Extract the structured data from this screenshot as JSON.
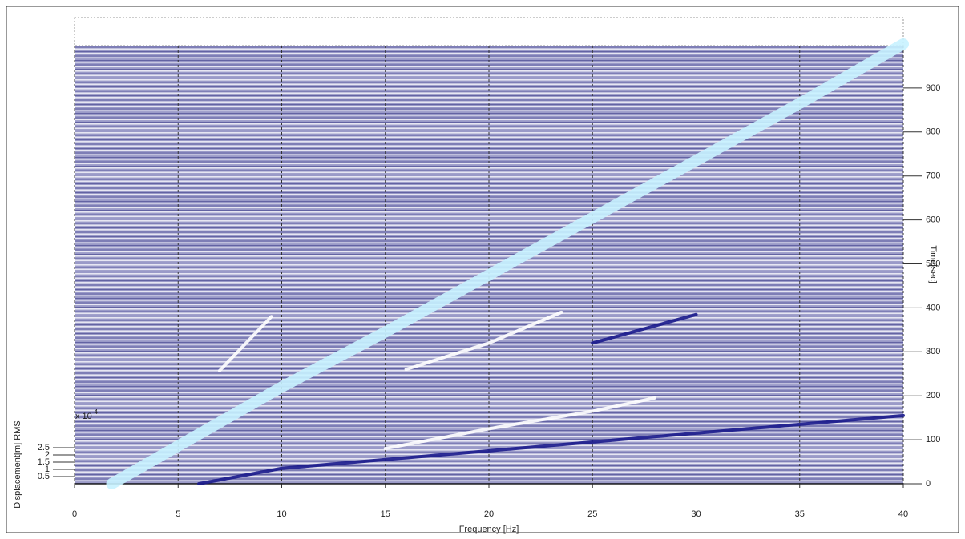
{
  "chart_data": {
    "type": "waterfall",
    "xlabel": "Frequency [Hz]",
    "ylabel": "Time[sec]",
    "zlabel": "Displacement[m] RMS",
    "zscale": {
      "base": "x 10",
      "exponent": "-4"
    },
    "xlim": [
      0,
      40
    ],
    "xticks": [
      0,
      5,
      10,
      15,
      20,
      25,
      30,
      35,
      40
    ],
    "ylim": [
      0,
      1000
    ],
    "yticks": [
      0,
      100,
      200,
      300,
      400,
      500,
      600,
      700,
      800,
      900
    ],
    "zlim": [
      0,
      2.5
    ],
    "zticks": [
      0.5,
      1,
      1.5,
      2,
      2.5
    ],
    "grid": true,
    "series": [
      {
        "color": "#c8f2ff",
        "x": [
          1.8,
          10,
          15,
          20,
          25,
          30,
          35,
          40
        ],
        "values": [
          0,
          220,
          345,
          475,
          605,
          735,
          865,
          1000
        ]
      },
      {
        "color": "#1a1a8c",
        "x": [
          6,
          10,
          20,
          30,
          40
        ],
        "values": [
          0,
          35,
          75,
          115,
          155
        ]
      },
      {
        "color": "#ffffff",
        "x": [
          15,
          20,
          25,
          28
        ],
        "values": [
          80,
          125,
          165,
          195
        ]
      },
      {
        "color": "#ffffff",
        "x": [
          16,
          20,
          23.5
        ],
        "values": [
          260,
          320,
          390
        ]
      },
      {
        "color": "#ffffff",
        "x": [
          7,
          9.5
        ],
        "values": [
          257,
          380
        ]
      },
      {
        "color": "#1a1a8c",
        "x": [
          25,
          30
        ],
        "values": [
          320,
          385
        ]
      }
    ]
  }
}
